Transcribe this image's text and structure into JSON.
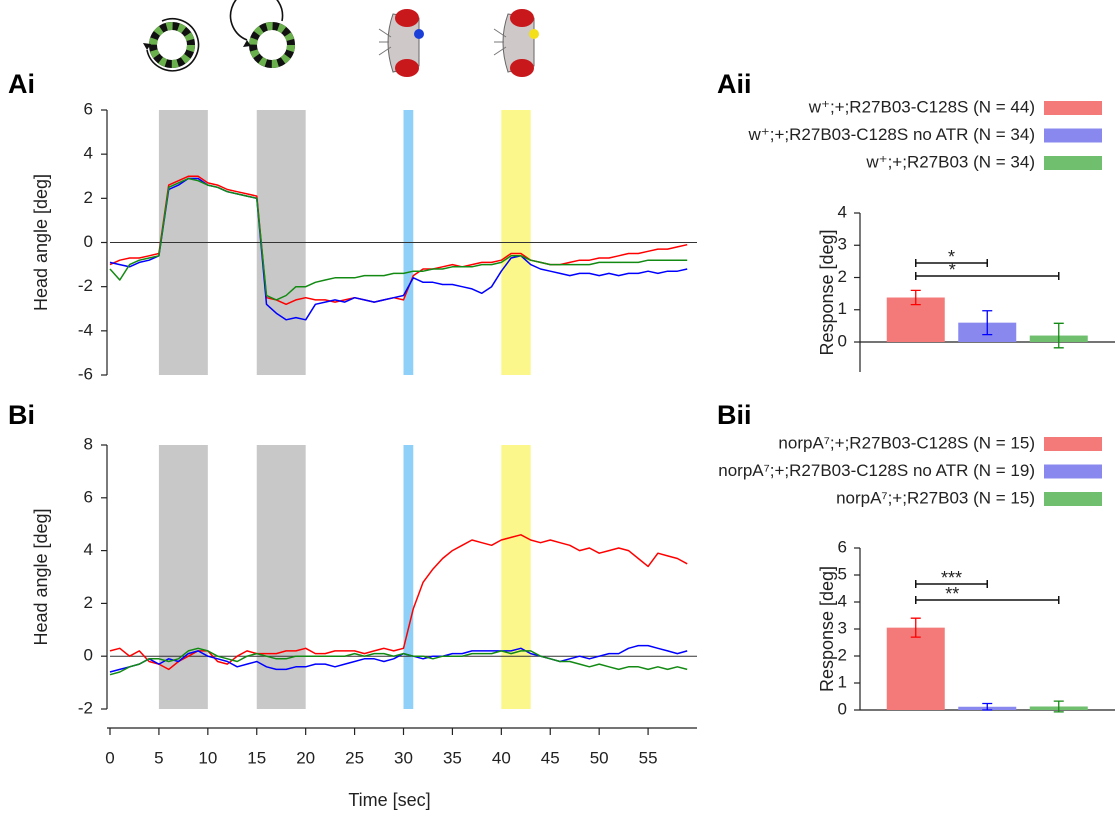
{
  "chart_data": [
    {
      "type": "line",
      "panel": "Ai",
      "ylabel": "Head angle [deg]",
      "xlim": [
        0,
        60
      ],
      "ylim": [
        -6,
        6
      ],
      "yticks": [
        -6,
        -4,
        -2,
        0,
        2,
        4,
        6
      ],
      "zero_line": true,
      "shaded_regions": [
        {
          "start": 5,
          "end": 10,
          "color": "#c8c8c8"
        },
        {
          "start": 15,
          "end": 20,
          "color": "#c8c8c8"
        },
        {
          "start": 30,
          "end": 31,
          "color": "#8fd0f8"
        },
        {
          "start": 40,
          "end": 43,
          "color": "#fbf78a"
        }
      ],
      "x": [
        0,
        1,
        2,
        3,
        4,
        5,
        6,
        7,
        8,
        9,
        10,
        11,
        12,
        13,
        14,
        15,
        16,
        17,
        18,
        19,
        20,
        21,
        22,
        23,
        24,
        25,
        26,
        27,
        28,
        29,
        30,
        31,
        32,
        33,
        34,
        35,
        36,
        37,
        38,
        39,
        40,
        41,
        42,
        43,
        44,
        45,
        46,
        47,
        48,
        49,
        50,
        51,
        52,
        53,
        54,
        55,
        56,
        57,
        58,
        59
      ],
      "series": [
        {
          "color": "#ff0000",
          "values": [
            -1,
            -0.8,
            -0.7,
            -0.7,
            -0.6,
            -0.5,
            2.6,
            2.8,
            3.0,
            3.0,
            2.7,
            2.6,
            2.4,
            2.3,
            2.2,
            2.1,
            -2.5,
            -2.6,
            -2.8,
            -2.6,
            -2.5,
            -2.6,
            -2.6,
            -2.7,
            -2.6,
            -2.5,
            -2.6,
            -2.7,
            -2.6,
            -2.5,
            -2.6,
            -1.5,
            -1.2,
            -1.2,
            -1.1,
            -1.0,
            -1.1,
            -1.0,
            -0.9,
            -0.9,
            -0.8,
            -0.5,
            -0.5,
            -0.8,
            -0.9,
            -1.0,
            -1.0,
            -0.9,
            -0.8,
            -0.8,
            -0.7,
            -0.7,
            -0.6,
            -0.5,
            -0.5,
            -0.4,
            -0.3,
            -0.3,
            -0.2,
            -0.1
          ]
        },
        {
          "color": "#0000ff",
          "values": [
            -0.9,
            -1.0,
            -1.1,
            -0.9,
            -0.8,
            -0.6,
            2.4,
            2.6,
            2.9,
            2.9,
            2.6,
            2.5,
            2.3,
            2.2,
            2.1,
            2.0,
            -2.8,
            -3.2,
            -3.5,
            -3.4,
            -3.5,
            -2.8,
            -2.7,
            -2.6,
            -2.7,
            -2.5,
            -2.6,
            -2.7,
            -2.6,
            -2.5,
            -2.4,
            -1.6,
            -1.8,
            -1.8,
            -1.9,
            -1.9,
            -2.0,
            -2.1,
            -2.3,
            -2.0,
            -1.3,
            -0.7,
            -0.6,
            -1.0,
            -1.2,
            -1.3,
            -1.4,
            -1.5,
            -1.4,
            -1.4,
            -1.5,
            -1.4,
            -1.5,
            -1.4,
            -1.4,
            -1.3,
            -1.4,
            -1.3,
            -1.3,
            -1.2
          ]
        },
        {
          "color": "#138a13",
          "values": [
            -1.2,
            -1.7,
            -1.0,
            -0.8,
            -0.7,
            -0.6,
            2.5,
            2.7,
            2.9,
            2.8,
            2.6,
            2.5,
            2.3,
            2.2,
            2.1,
            2.0,
            -2.4,
            -2.6,
            -2.4,
            -2.0,
            -2.0,
            -1.8,
            -1.7,
            -1.6,
            -1.6,
            -1.6,
            -1.5,
            -1.5,
            -1.5,
            -1.4,
            -1.4,
            -1.3,
            -1.3,
            -1.2,
            -1.2,
            -1.1,
            -1.1,
            -1.1,
            -1.0,
            -1.0,
            -0.9,
            -0.6,
            -0.6,
            -0.8,
            -0.9,
            -1.0,
            -1.0,
            -1.0,
            -1.0,
            -1.0,
            -0.9,
            -0.9,
            -0.9,
            -0.9,
            -0.9,
            -0.8,
            -0.8,
            -0.8,
            -0.8,
            -0.8
          ]
        }
      ]
    },
    {
      "type": "bar",
      "panel": "Aii",
      "ylabel": "Response [deg]",
      "ylim": [
        -0.93,
        4
      ],
      "yticks": [
        0,
        1,
        2,
        3,
        4
      ],
      "series": [
        {
          "name": "w⁺;+;R27B03-C128S (N = 44)",
          "color": "#f47a7a",
          "error_color": "#ff0000",
          "values": [
            1.38
          ],
          "errors": [
            0.22
          ]
        },
        {
          "name": "w⁺;+;R27B03-C128S no ATR (N = 34)",
          "color": "#8888ee",
          "error_color": "#0000ff",
          "values": [
            0.6
          ],
          "errors": [
            0.37
          ]
        },
        {
          "name": "w⁺;+;R27B03 (N = 34)",
          "color": "#6fbf6f",
          "error_color": "#138a13",
          "values": [
            0.2
          ],
          "errors": [
            0.38
          ]
        }
      ],
      "significance": [
        "*",
        "*"
      ]
    },
    {
      "type": "line",
      "panel": "Bi",
      "ylabel": "Head angle [deg]",
      "xlabel": "Time [sec]",
      "xlim": [
        0,
        60
      ],
      "ylim": [
        -2,
        8
      ],
      "yticks": [
        -2,
        0,
        2,
        4,
        6,
        8
      ],
      "xticks": [
        0,
        5,
        10,
        15,
        20,
        25,
        30,
        35,
        40,
        45,
        50,
        55
      ],
      "zero_line": true,
      "shaded_regions": [
        {
          "start": 5,
          "end": 10,
          "color": "#c8c8c8"
        },
        {
          "start": 15,
          "end": 20,
          "color": "#c8c8c8"
        },
        {
          "start": 30,
          "end": 31,
          "color": "#8fd0f8"
        },
        {
          "start": 40,
          "end": 43,
          "color": "#fbf78a"
        }
      ],
      "x": [
        0,
        1,
        2,
        3,
        4,
        5,
        6,
        7,
        8,
        9,
        10,
        11,
        12,
        13,
        14,
        15,
        16,
        17,
        18,
        19,
        20,
        21,
        22,
        23,
        24,
        25,
        26,
        27,
        28,
        29,
        30,
        31,
        32,
        33,
        34,
        35,
        36,
        37,
        38,
        39,
        40,
        41,
        42,
        43,
        44,
        45,
        46,
        47,
        48,
        49,
        50,
        51,
        52,
        53,
        54,
        55,
        56,
        57,
        58,
        59
      ],
      "series": [
        {
          "color": "#ff0000",
          "values": [
            0.2,
            0.3,
            0.0,
            0.2,
            -0.2,
            -0.3,
            -0.5,
            -0.2,
            0.0,
            0.2,
            0.2,
            -0.2,
            -0.3,
            0.0,
            0.2,
            0.1,
            0.1,
            0.1,
            0.2,
            0.2,
            0.3,
            0.1,
            0.1,
            0.2,
            0.2,
            0.2,
            0.1,
            0.2,
            0.3,
            0.2,
            0.3,
            1.8,
            2.8,
            3.3,
            3.7,
            4.0,
            4.2,
            4.4,
            4.3,
            4.2,
            4.4,
            4.5,
            4.6,
            4.4,
            4.3,
            4.4,
            4.3,
            4.2,
            4.0,
            4.1,
            3.9,
            4.0,
            4.1,
            4.0,
            3.7,
            3.4,
            3.9,
            3.8,
            3.7,
            3.5
          ]
        },
        {
          "color": "#0000ff",
          "values": [
            -0.6,
            -0.5,
            -0.4,
            -0.3,
            -0.1,
            -0.3,
            -0.1,
            -0.2,
            0.1,
            0.2,
            0.0,
            -0.1,
            -0.2,
            -0.4,
            -0.3,
            -0.2,
            -0.4,
            -0.5,
            -0.5,
            -0.4,
            -0.4,
            -0.3,
            -0.3,
            -0.4,
            -0.3,
            -0.2,
            -0.1,
            -0.1,
            -0.2,
            -0.1,
            0.1,
            0.0,
            -0.1,
            0.0,
            0.0,
            0.1,
            0.1,
            0.2,
            0.2,
            0.2,
            0.2,
            0.2,
            0.3,
            0.1,
            0.0,
            -0.1,
            -0.2,
            -0.1,
            0.0,
            -0.1,
            0.0,
            0.1,
            0.1,
            0.3,
            0.4,
            0.4,
            0.3,
            0.2,
            0.1,
            0.2
          ]
        },
        {
          "color": "#138a13",
          "values": [
            -0.7,
            -0.6,
            -0.4,
            -0.3,
            -0.1,
            -0.1,
            -0.2,
            -0.1,
            0.2,
            0.3,
            0.2,
            0.0,
            -0.1,
            -0.2,
            0.0,
            0.1,
            0.0,
            -0.1,
            -0.1,
            0.0,
            0.0,
            0.0,
            0.0,
            0.0,
            0.0,
            0.1,
            0.0,
            0.1,
            0.1,
            0.0,
            0.1,
            0.0,
            0.0,
            -0.1,
            0.0,
            0.0,
            0.0,
            0.1,
            0.1,
            0.1,
            0.2,
            0.1,
            0.2,
            0.2,
            0.0,
            -0.1,
            -0.2,
            -0.2,
            -0.3,
            -0.4,
            -0.3,
            -0.4,
            -0.5,
            -0.4,
            -0.4,
            -0.5,
            -0.4,
            -0.5,
            -0.4,
            -0.5
          ]
        }
      ]
    },
    {
      "type": "bar",
      "panel": "Bii",
      "ylabel": "Response [deg]",
      "ylim": [
        0,
        6
      ],
      "yticks": [
        0,
        1,
        2,
        3,
        4,
        5,
        6
      ],
      "series": [
        {
          "name": "norpA⁷;+;R27B03-C128S (N = 15)",
          "color": "#f47a7a",
          "error_color": "#ff0000",
          "values": [
            3.05
          ],
          "errors": [
            0.35
          ]
        },
        {
          "name": "norpA⁷;+;R27B03-C128S no ATR (N = 19)",
          "color": "#8888ee",
          "error_color": "#0000ff",
          "values": [
            0.12
          ],
          "errors": [
            0.12
          ]
        },
        {
          "name": "norpA⁷;+;R27B03 (N = 15)",
          "color": "#6fbf6f",
          "error_color": "#138a13",
          "values": [
            0.13
          ],
          "errors": [
            0.2
          ]
        }
      ],
      "significance": [
        "***",
        "**"
      ]
    }
  ]
}
